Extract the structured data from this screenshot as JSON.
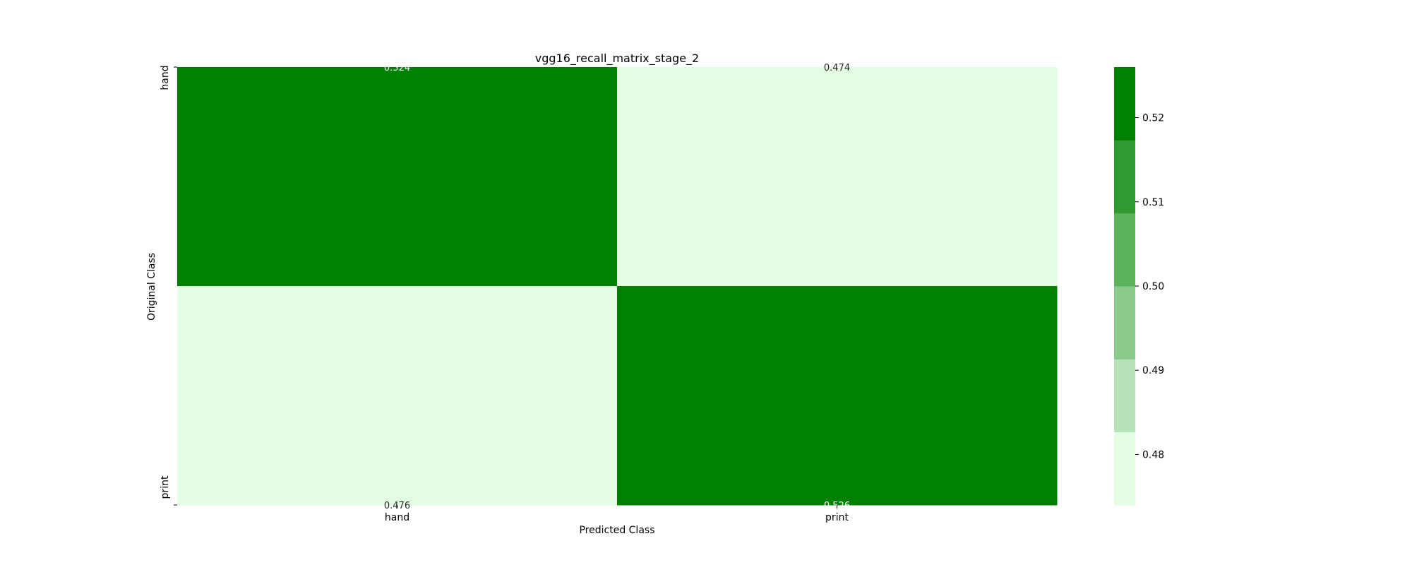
{
  "chart_data": {
    "type": "heatmap",
    "title": "vgg16_recall_matrix_stage_2",
    "xlabel": "Predicted Class",
    "ylabel": "Original Class",
    "x_categories": [
      "hand",
      "print"
    ],
    "y_categories": [
      "hand",
      "print"
    ],
    "values": [
      [
        0.524,
        0.474
      ],
      [
        0.476,
        0.526
      ]
    ],
    "value_labels": [
      [
        "0.524",
        "0.474"
      ],
      [
        "0.476",
        "0.526"
      ]
    ],
    "colorbar": {
      "vmin": 0.474,
      "vmax": 0.526,
      "ticks": [
        0.48,
        0.49,
        0.5,
        0.51,
        0.52
      ],
      "tick_labels": [
        "0.48",
        "0.49",
        "0.50",
        "0.51",
        "0.52"
      ],
      "levels": 6,
      "colors": [
        "#e2fde2",
        "#b8e3b8",
        "#8bca8b",
        "#5db25d",
        "#309930",
        "#008000"
      ]
    },
    "annotation_text_colors": {
      "on_dark": "#ffffff",
      "on_light": "#262626"
    },
    "grid": false,
    "legend": "colorbar-right"
  }
}
